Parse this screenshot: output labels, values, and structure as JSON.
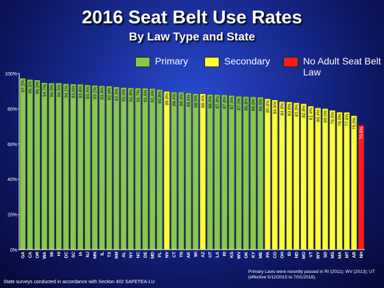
{
  "title": "2016 Seat Belt Use Rates",
  "subtitle": "By Law Type and State",
  "legend": [
    {
      "label": "Primary",
      "color": "#88c84a"
    },
    {
      "label": "Secondary",
      "color": "#ffff33"
    },
    {
      "label": "No Adult Seat Belt Law",
      "color": "#ff1a1a"
    }
  ],
  "footnote_right": "Primary Laws were recently passed in RI (2011); WV (2013); UT (effective 5/12/2015 to 7/01/2018).",
  "footnote_left": "State surveys conducted in accordance with Section 402 SAFETEA-LU",
  "chart_data": {
    "type": "bar",
    "title": "2016 Seat Belt Use Rates",
    "subtitle": "By Law Type and State",
    "ylim": [
      0,
      100
    ],
    "yticks": [
      "0%",
      "20%",
      "40%",
      "60%",
      "80%",
      "100%"
    ],
    "grid": false,
    "legend_position": "top-right",
    "categories": [
      "GA",
      "CA",
      "OR",
      "WA",
      "MI",
      "HI",
      "DC",
      "SC",
      "IA",
      "NJ",
      "MN",
      "IL",
      "TX",
      "NM",
      "AL",
      "NY",
      "NC",
      "DE",
      "MD",
      "FL",
      "NV",
      "CT",
      "TN",
      "AK",
      "WI",
      "AZ",
      "UT",
      "LA",
      "RI",
      "KS",
      "WV",
      "OK",
      "KY",
      "ME",
      "PA",
      "CO",
      "OH",
      "ID",
      "ND",
      "MO",
      "VT",
      "WY",
      "SD",
      "MS",
      "MA",
      "MT",
      "AR",
      "NH"
    ],
    "values": [
      97.2,
      96.5,
      96.2,
      94.7,
      94.5,
      94.5,
      94.1,
      93.9,
      93.8,
      93.4,
      93.2,
      93.0,
      92.8,
      92.3,
      92.0,
      91.8,
      91.7,
      91.6,
      91.4,
      90.8,
      89.8,
      89.4,
      89.4,
      88.9,
      88.5,
      88.4,
      88.0,
      87.9,
      87.8,
      87.5,
      87.0,
      86.8,
      86.6,
      86.5,
      85.6,
      84.9,
      84.0,
      83.8,
      83.3,
      82.8,
      81.4,
      80.4,
      80.0,
      79.0,
      78.0,
      77.9,
      76.0,
      70.5
    ],
    "law_types": [
      "primary",
      "primary",
      "primary",
      "primary",
      "primary",
      "primary",
      "primary",
      "primary",
      "primary",
      "primary",
      "primary",
      "primary",
      "primary",
      "primary",
      "primary",
      "primary",
      "primary",
      "primary",
      "primary",
      "primary",
      "secondary",
      "primary",
      "primary",
      "primary",
      "primary",
      "secondary",
      "primary",
      "primary",
      "primary",
      "primary",
      "primary",
      "primary",
      "primary",
      "primary",
      "secondary",
      "secondary",
      "secondary",
      "secondary",
      "secondary",
      "secondary",
      "secondary",
      "secondary",
      "secondary",
      "secondary",
      "secondary",
      "secondary",
      "secondary",
      "none"
    ],
    "colors": {
      "primary": "#88c84a",
      "secondary": "#ffff33",
      "none": "#ff1a1a"
    }
  }
}
